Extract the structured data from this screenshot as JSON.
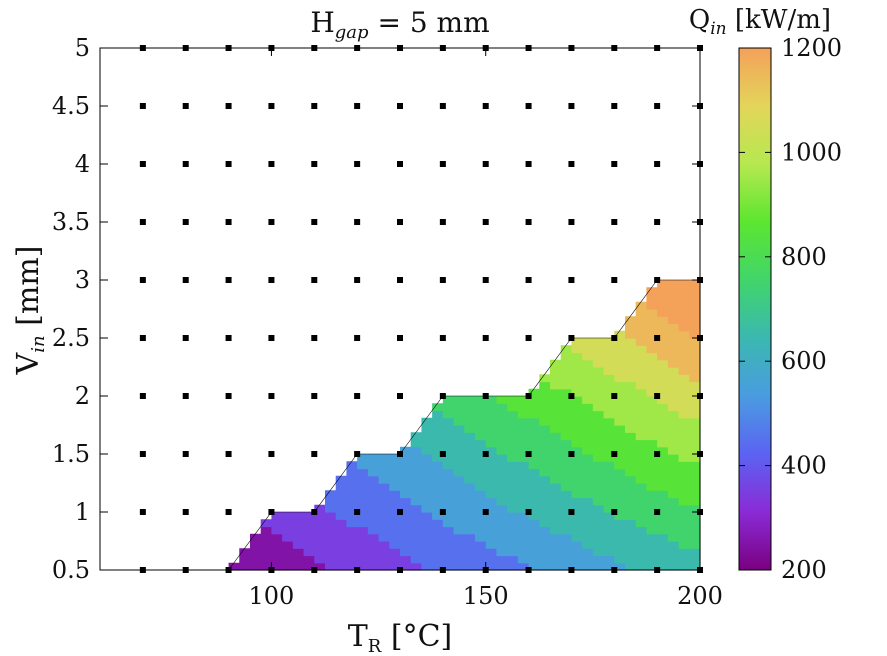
{
  "chart_data": {
    "type": "heatmap",
    "subtype": "filled-contour",
    "title": "H_gap = 5 mm",
    "title_parts": {
      "main": "H",
      "sub": "gap",
      "rest": " = 5 mm"
    },
    "xlabel": "T_R [°C]",
    "xlabel_parts": {
      "main": "T",
      "sub": "R",
      "rest": " [°C]"
    },
    "ylabel": "V_in [mm]",
    "ylabel_parts": {
      "main": "V",
      "sub": "in",
      "rest": " [mm]"
    },
    "xlim": [
      60,
      200
    ],
    "ylim": [
      0.5,
      5
    ],
    "x_ticks": [
      100,
      150,
      200
    ],
    "x_tick_labels": [
      "100",
      "150",
      "200"
    ],
    "y_ticks": [
      0.5,
      1,
      1.5,
      2,
      2.5,
      3,
      3.5,
      4,
      4.5,
      5
    ],
    "y_tick_labels": [
      "0.5",
      "1",
      "1.5",
      "2",
      "2.5",
      "3",
      "3.5",
      "4",
      "4.5",
      "5"
    ],
    "grid_points": {
      "x": [
        60,
        70,
        80,
        90,
        100,
        110,
        120,
        130,
        140,
        150,
        160,
        170,
        180,
        190,
        200
      ],
      "y": [
        0.5,
        1,
        1.5,
        2,
        2.5,
        3,
        3.5,
        4,
        4.5,
        5
      ]
    },
    "feasible_region_boundary": [
      [
        90,
        0.5
      ],
      [
        100,
        1
      ],
      [
        110,
        1
      ],
      [
        120,
        1.5
      ],
      [
        130,
        1.5
      ],
      [
        140,
        2
      ],
      [
        160,
        2
      ],
      [
        170,
        2.5
      ],
      [
        180,
        2.5
      ],
      [
        190,
        3
      ],
      [
        200,
        3
      ],
      [
        200,
        0.5
      ]
    ],
    "contour_levels": [
      200,
      300,
      400,
      500,
      600,
      700,
      800,
      900,
      1000,
      1100,
      1200
    ],
    "z_range": [
      200,
      1200
    ],
    "z_values_sample": [
      {
        "x": 100,
        "y": 0.5,
        "z": 240
      },
      {
        "x": 120,
        "y": 0.5,
        "z": 300
      },
      {
        "x": 140,
        "y": 0.5,
        "z": 430
      },
      {
        "x": 160,
        "y": 0.5,
        "z": 520
      },
      {
        "x": 180,
        "y": 0.5,
        "z": 620
      },
      {
        "x": 200,
        "y": 0.5,
        "z": 720
      },
      {
        "x": 110,
        "y": 1,
        "z": 310
      },
      {
        "x": 140,
        "y": 1,
        "z": 420
      },
      {
        "x": 170,
        "y": 1,
        "z": 560
      },
      {
        "x": 200,
        "y": 1,
        "z": 740
      },
      {
        "x": 130,
        "y": 1.5,
        "z": 460
      },
      {
        "x": 160,
        "y": 1.5,
        "z": 620
      },
      {
        "x": 200,
        "y": 1.5,
        "z": 860
      },
      {
        "x": 150,
        "y": 2,
        "z": 640
      },
      {
        "x": 180,
        "y": 2,
        "z": 840
      },
      {
        "x": 200,
        "y": 2,
        "z": 980
      },
      {
        "x": 180,
        "y": 2.5,
        "z": 930
      },
      {
        "x": 200,
        "y": 2.5,
        "z": 1100
      },
      {
        "x": 200,
        "y": 3,
        "z": 1200
      }
    ],
    "colorbar": {
      "label": "Q_in [kW/m]",
      "label_parts": {
        "main": "Q",
        "sub": "in",
        "rest": " [kW/m]"
      },
      "ticks": [
        200,
        400,
        600,
        800,
        1000,
        1200
      ],
      "tick_labels": [
        "200",
        "400",
        "600",
        "800",
        "1000",
        "1200"
      ],
      "colormap_stops": [
        "#7a0080",
        "#8a2bd6",
        "#5b63f2",
        "#4a9ce0",
        "#3bb8b0",
        "#41d56a",
        "#5ce630",
        "#b6e850",
        "#e3d55a",
        "#f4a15a"
      ]
    }
  }
}
